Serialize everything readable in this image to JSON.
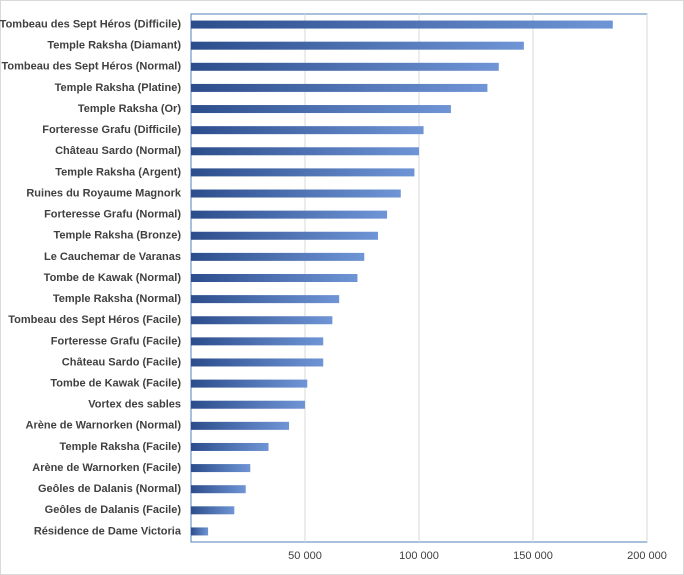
{
  "chart_data": {
    "type": "bar",
    "orientation": "horizontal",
    "categories": [
      "Tombeau des Sept Héros (Difficile)",
      "Temple Raksha (Diamant)",
      "Tombeau des Sept Héros (Normal)",
      "Temple Raksha (Platine)",
      "Temple Raksha (Or)",
      "Forteresse Grafu (Difficile)",
      "Château Sardo (Normal)",
      "Temple Raksha (Argent)",
      "Ruines du Royaume Magnork",
      "Forteresse Grafu (Normal)",
      "Temple Raksha (Bronze)",
      "Le Cauchemar de Varanas",
      "Tombe de Kawak (Normal)",
      "Temple Raksha (Normal)",
      "Tombeau des Sept Héros (Facile)",
      "Forteresse Grafu (Facile)",
      "Château Sardo (Facile)",
      "Tombe de Kawak (Facile)",
      "Vortex des sables",
      "Arène de Warnorken (Normal)",
      "Temple Raksha (Facile)",
      "Arène de Warnorken (Facile)",
      "Geôles de Dalanis (Normal)",
      "Geôles de Dalanis (Facile)",
      "Résidence de Dame Victoria"
    ],
    "values": [
      185000,
      146000,
      135000,
      130000,
      114000,
      102000,
      100000,
      98000,
      92000,
      86000,
      82000,
      76000,
      73000,
      65000,
      62000,
      58000,
      58000,
      51000,
      50000,
      43000,
      34000,
      26000,
      24000,
      19000,
      7500
    ],
    "color": "#6f95d6",
    "xlim": [
      0,
      200000
    ],
    "xticks": [
      {
        "value": 50000,
        "label": "50 000"
      },
      {
        "value": 100000,
        "label": "100 000"
      },
      {
        "value": 150000,
        "label": "150 000"
      },
      {
        "value": 200000,
        "label": "200 000"
      }
    ],
    "grid": true
  }
}
